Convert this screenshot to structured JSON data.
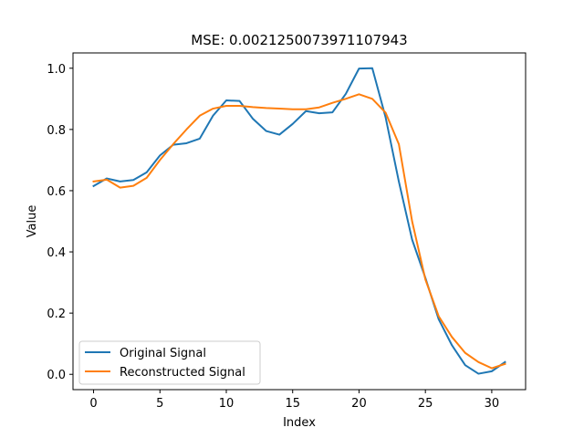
{
  "chart_data": {
    "type": "line",
    "title": "MSE: 0.0021250073971107943",
    "xlabel": "Index",
    "ylabel": "Value",
    "xlim": [
      -1.55,
      32.55
    ],
    "ylim": [
      -0.05,
      1.05
    ],
    "xticks": [
      0,
      5,
      10,
      15,
      20,
      25,
      30
    ],
    "xtick_labels": [
      "0",
      "5",
      "10",
      "15",
      "20",
      "25",
      "30"
    ],
    "yticks": [
      0.0,
      0.2,
      0.4,
      0.6,
      0.8,
      1.0
    ],
    "ytick_labels": [
      "0.0",
      "0.2",
      "0.4",
      "0.6",
      "0.8",
      "1.0"
    ],
    "grid": false,
    "legend_position": "lower-left",
    "x": [
      0,
      1,
      2,
      3,
      4,
      5,
      6,
      7,
      8,
      9,
      10,
      11,
      12,
      13,
      14,
      15,
      16,
      17,
      18,
      19,
      20,
      21,
      22,
      23,
      24,
      25,
      26,
      27,
      28,
      29,
      30,
      31
    ],
    "series": [
      {
        "name": "Original Signal",
        "color": "#1f77b4",
        "values": [
          0.615,
          0.64,
          0.63,
          0.635,
          0.66,
          0.715,
          0.75,
          0.755,
          0.77,
          0.845,
          0.895,
          0.893,
          0.835,
          0.795,
          0.783,
          0.818,
          0.86,
          0.853,
          0.856,
          0.916,
          0.999,
          1.0,
          0.84,
          0.63,
          0.44,
          0.315,
          0.18,
          0.095,
          0.03,
          0.002,
          0.01,
          0.04
        ]
      },
      {
        "name": "Reconstructed Signal",
        "color": "#ff7f0e",
        "values": [
          0.63,
          0.636,
          0.61,
          0.616,
          0.642,
          0.7,
          0.752,
          0.8,
          0.845,
          0.868,
          0.877,
          0.877,
          0.873,
          0.87,
          0.868,
          0.866,
          0.866,
          0.872,
          0.887,
          0.9,
          0.915,
          0.9,
          0.855,
          0.752,
          0.5,
          0.31,
          0.19,
          0.122,
          0.07,
          0.04,
          0.02,
          0.034
        ]
      }
    ]
  }
}
